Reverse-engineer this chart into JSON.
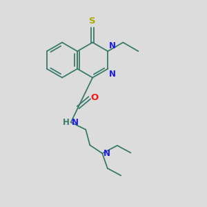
{
  "bg_color": "#dcdcdc",
  "bond_color": "#3a7a6a",
  "N_color": "#1a1aee",
  "O_color": "#ee1a1a",
  "S_color": "#aaaa00",
  "H_color": "#3a7a6a",
  "font_size": 8.5,
  "line_width": 1.3,
  "figsize": [
    3.0,
    3.0
  ],
  "dpi": 100,
  "xlim": [
    0,
    10
  ],
  "ylim": [
    0,
    10
  ]
}
